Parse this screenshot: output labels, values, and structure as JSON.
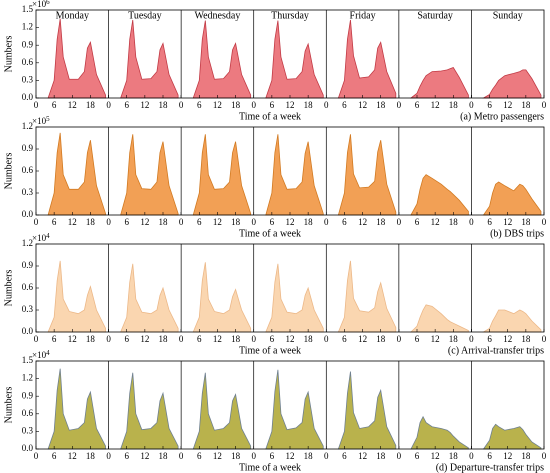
{
  "chart_data": [
    {
      "type": "area",
      "ylabel": "Numbers",
      "y_multiplier": {
        "base": "×10",
        "exponent": "6"
      },
      "xlabel": "Time of a week",
      "caption": "(a) Metro passengers",
      "day_labels": [
        "Monday",
        "Tuesday",
        "Wednesday",
        "Thursday",
        "Friday",
        "Saturday",
        "Sunday"
      ],
      "color": "#ec7a80",
      "edge_color": "#c23a45",
      "xlim": [
        0,
        24
      ],
      "xticks": [
        0,
        6,
        12,
        18,
        {
          "value": 24,
          "label": "0"
        }
      ],
      "ylim": [
        0,
        1.5
      ],
      "yticks": [
        {
          "value": 0,
          "label": "0.0"
        },
        0.3,
        0.6,
        0.9,
        1.2,
        1.5
      ],
      "x": [
        4,
        6,
        7,
        8,
        9,
        11,
        14,
        16,
        17,
        18,
        20,
        23
      ],
      "series": [
        {
          "values": [
            0,
            0.3,
            1.0,
            1.35,
            0.7,
            0.32,
            0.32,
            0.45,
            0.85,
            0.95,
            0.4,
            0.05
          ]
        },
        {
          "values": [
            0,
            0.3,
            1.0,
            1.33,
            0.7,
            0.32,
            0.33,
            0.45,
            0.82,
            0.93,
            0.4,
            0.05
          ]
        },
        {
          "values": [
            0,
            0.3,
            1.0,
            1.32,
            0.7,
            0.32,
            0.33,
            0.45,
            0.82,
            0.93,
            0.4,
            0.05
          ]
        },
        {
          "values": [
            0,
            0.3,
            1.0,
            1.32,
            0.7,
            0.32,
            0.33,
            0.45,
            0.8,
            0.92,
            0.4,
            0.05
          ]
        },
        {
          "values": [
            0,
            0.3,
            1.0,
            1.33,
            0.72,
            0.34,
            0.36,
            0.48,
            0.85,
            0.95,
            0.45,
            0.08
          ]
        },
        {
          "values": [
            0,
            0.08,
            0.2,
            0.3,
            0.38,
            0.45,
            0.46,
            0.48,
            0.5,
            0.52,
            0.35,
            0.05
          ]
        },
        {
          "values": [
            0,
            0.06,
            0.15,
            0.22,
            0.3,
            0.38,
            0.42,
            0.45,
            0.48,
            0.48,
            0.33,
            0.05
          ]
        }
      ]
    },
    {
      "type": "area",
      "ylabel": "Numbers",
      "y_multiplier": {
        "base": "×10",
        "exponent": "5"
      },
      "xlabel": "Time of a week",
      "caption": "(b) DBS trips",
      "color": "#f2a055",
      "edge_color": "#d27a22",
      "xlim": [
        0,
        24
      ],
      "xticks": [
        0,
        6,
        12,
        18,
        {
          "value": 24,
          "label": "0"
        }
      ],
      "ylim": [
        0,
        1.2
      ],
      "yticks": [
        {
          "value": 0,
          "label": "0.0"
        },
        0.3,
        0.6,
        0.9,
        1.2
      ],
      "x": [
        4,
        6,
        7,
        8,
        9,
        11,
        14,
        16,
        17,
        18,
        20,
        23
      ],
      "series": [
        {
          "values": [
            0,
            0.3,
            0.85,
            1.12,
            0.55,
            0.35,
            0.35,
            0.45,
            0.85,
            1.02,
            0.4,
            0.02
          ]
        },
        {
          "values": [
            0,
            0.3,
            0.85,
            1.1,
            0.55,
            0.36,
            0.35,
            0.45,
            0.85,
            1.0,
            0.4,
            0.02
          ]
        },
        {
          "values": [
            0,
            0.3,
            0.85,
            1.1,
            0.55,
            0.35,
            0.36,
            0.45,
            0.85,
            1.0,
            0.4,
            0.02
          ]
        },
        {
          "values": [
            0,
            0.3,
            0.85,
            1.1,
            0.55,
            0.35,
            0.36,
            0.45,
            0.84,
            1.0,
            0.4,
            0.02
          ]
        },
        {
          "values": [
            0,
            0.3,
            0.85,
            1.1,
            0.56,
            0.37,
            0.38,
            0.46,
            0.86,
            1.02,
            0.42,
            0.04
          ]
        },
        {
          "values": [
            0,
            0.15,
            0.35,
            0.5,
            0.55,
            0.5,
            0.42,
            0.35,
            0.32,
            0.28,
            0.2,
            0.05
          ]
        },
        {
          "values": [
            0,
            0.12,
            0.3,
            0.42,
            0.45,
            0.4,
            0.33,
            0.42,
            0.4,
            0.35,
            0.22,
            0.05
          ]
        }
      ]
    },
    {
      "type": "area",
      "ylabel": "Numbers",
      "y_multiplier": {
        "base": "×10",
        "exponent": "4"
      },
      "xlabel": "Time of a week",
      "caption": "(c) Arrival-transfer trips",
      "color": "#fad6b0",
      "edge_color": "#ecb888",
      "xlim": [
        0,
        24
      ],
      "xticks": [
        0,
        6,
        12,
        18,
        {
          "value": 24,
          "label": "0"
        }
      ],
      "ylim": [
        0,
        1.2
      ],
      "yticks": [
        {
          "value": 0,
          "label": "0.0"
        },
        0.3,
        0.6,
        0.9,
        1.2
      ],
      "x": [
        4,
        6,
        7,
        8,
        9,
        11,
        14,
        16,
        17,
        18,
        20,
        23
      ],
      "series": [
        {
          "values": [
            0,
            0.2,
            0.7,
            0.97,
            0.45,
            0.28,
            0.25,
            0.3,
            0.5,
            0.62,
            0.3,
            0.05
          ]
        },
        {
          "values": [
            0,
            0.2,
            0.68,
            0.93,
            0.45,
            0.27,
            0.25,
            0.3,
            0.5,
            0.6,
            0.3,
            0.05
          ]
        },
        {
          "values": [
            0,
            0.2,
            0.7,
            0.95,
            0.45,
            0.28,
            0.25,
            0.3,
            0.48,
            0.58,
            0.3,
            0.05
          ]
        },
        {
          "values": [
            0,
            0.2,
            0.68,
            0.93,
            0.45,
            0.27,
            0.25,
            0.3,
            0.5,
            0.6,
            0.3,
            0.05
          ]
        },
        {
          "values": [
            0,
            0.2,
            0.7,
            0.97,
            0.46,
            0.29,
            0.27,
            0.33,
            0.55,
            0.67,
            0.32,
            0.06
          ]
        },
        {
          "values": [
            0,
            0.08,
            0.2,
            0.3,
            0.37,
            0.35,
            0.25,
            0.17,
            0.14,
            0.12,
            0.08,
            0.02
          ]
        },
        {
          "values": [
            0,
            0.05,
            0.15,
            0.22,
            0.3,
            0.3,
            0.25,
            0.3,
            0.28,
            0.25,
            0.15,
            0.03
          ]
        }
      ]
    },
    {
      "type": "area",
      "ylabel": "Numbers",
      "y_multiplier": {
        "base": "×10",
        "exponent": "4"
      },
      "xlabel": "Time of a week",
      "caption": "(d) Departure-transfer trips",
      "color": "#b9b24c",
      "edge_color": "#6f8090",
      "xlim": [
        0,
        24
      ],
      "xticks": [
        0,
        6,
        12,
        18,
        {
          "value": 24,
          "label": "0"
        }
      ],
      "ylim": [
        0,
        1.5
      ],
      "yticks": [
        {
          "value": 0,
          "label": "0.0"
        },
        0.3,
        0.6,
        0.9,
        1.2,
        1.5
      ],
      "x": [
        4,
        6,
        7,
        8,
        9,
        11,
        14,
        16,
        17,
        18,
        20,
        23
      ],
      "series": [
        {
          "values": [
            0,
            0.3,
            1.0,
            1.37,
            0.6,
            0.32,
            0.35,
            0.45,
            0.85,
            0.97,
            0.35,
            0.05
          ]
        },
        {
          "values": [
            0,
            0.3,
            0.95,
            1.3,
            0.6,
            0.33,
            0.35,
            0.45,
            0.82,
            0.95,
            0.35,
            0.05
          ]
        },
        {
          "values": [
            0,
            0.3,
            0.95,
            1.3,
            0.6,
            0.32,
            0.35,
            0.45,
            0.82,
            0.93,
            0.35,
            0.05
          ]
        },
        {
          "values": [
            0,
            0.3,
            0.98,
            1.35,
            0.6,
            0.33,
            0.36,
            0.45,
            0.85,
            0.97,
            0.35,
            0.05
          ]
        },
        {
          "values": [
            0,
            0.3,
            0.95,
            1.32,
            0.62,
            0.35,
            0.38,
            0.48,
            0.88,
            1.0,
            0.38,
            0.06
          ]
        },
        {
          "values": [
            0,
            0.2,
            0.45,
            0.55,
            0.45,
            0.38,
            0.35,
            0.32,
            0.28,
            0.22,
            0.12,
            0.02
          ]
        },
        {
          "values": [
            0,
            0.15,
            0.35,
            0.42,
            0.38,
            0.32,
            0.35,
            0.38,
            0.33,
            0.25,
            0.12,
            0.02
          ]
        }
      ]
    }
  ]
}
